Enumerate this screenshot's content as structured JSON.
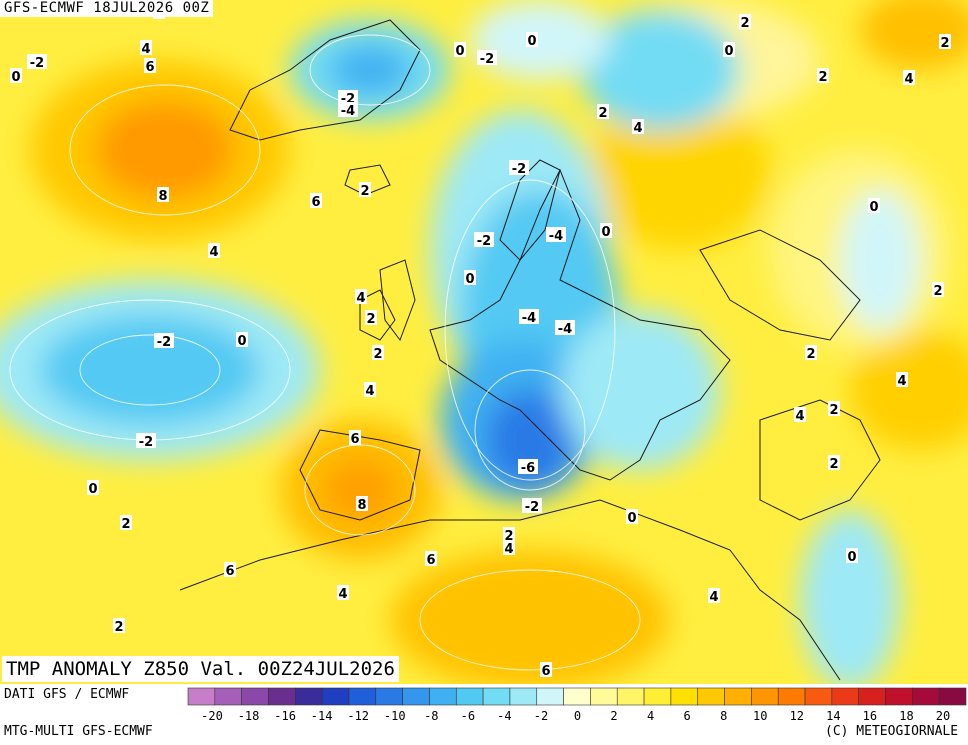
{
  "header": {
    "model_run": "GFS-ECMWF 18JUL2026 00Z"
  },
  "map_title": "TMP ANOMALY Z850 Val. 00Z24JUL2026",
  "footer": {
    "data_source": "DATI GFS / ECMWF",
    "model_name": "MTG-MULTI GFS-ECMWF",
    "copyright": "(C) METEOGIORNALE"
  },
  "colorbar": {
    "colors": [
      "#c77ec9",
      "#a55fb9",
      "#8a48a8",
      "#6a2f8e",
      "#3a2c9b",
      "#1f3fc0",
      "#1f5fd9",
      "#2a7ae6",
      "#3596ee",
      "#3fb1f2",
      "#52c9f3",
      "#72dcf4",
      "#9ee9f6",
      "#d1f6f9",
      "#ffffcc",
      "#fffb99",
      "#fff566",
      "#ffee33",
      "#ffe000",
      "#ffc800",
      "#ffb000",
      "#ff9500",
      "#ff7a00",
      "#f85a10",
      "#ea3a18",
      "#d8201e",
      "#c0102c",
      "#a40a3a",
      "#880a40"
    ],
    "tick_labels": [
      "-20",
      "-18",
      "-16",
      "-14",
      "-12",
      "-10",
      "-8",
      "-6",
      "-4",
      "-2",
      "0",
      "2",
      "4",
      "6",
      "8",
      "10",
      "12",
      "14",
      "16",
      "18",
      "20"
    ]
  },
  "map_labels": [
    "2",
    "2",
    "0",
    "4",
    "0",
    "-2",
    "-2",
    "0",
    "6",
    "4",
    "2",
    "-4",
    "-2",
    "8",
    "2",
    "4",
    "6",
    "-2",
    "0",
    "2",
    "2",
    "-4",
    "0",
    "4",
    "4",
    "4",
    "-2",
    "0",
    "0",
    "2",
    "2",
    "-4",
    "-4",
    "2",
    "-2",
    "4",
    "6",
    "-2",
    "0",
    "2",
    "2",
    "4",
    "-6",
    "2",
    "8",
    "2",
    "-2",
    "4",
    "6",
    "0",
    "0",
    "4",
    "2",
    "4",
    "6",
    "2",
    "0",
    "6"
  ]
}
